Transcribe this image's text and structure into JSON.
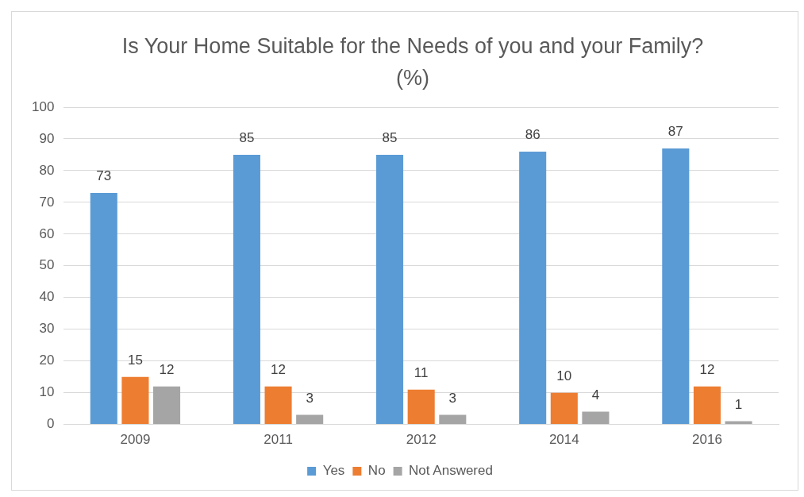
{
  "chart_data": {
    "type": "bar",
    "title": "Is Your Home Suitable for the Needs of you and your Family? (%)",
    "categories": [
      "2009",
      "2011",
      "2012",
      "2014",
      "2016"
    ],
    "series": [
      {
        "name": "Yes",
        "color": "#5b9bd5",
        "values": [
          73,
          85,
          85,
          86,
          87
        ]
      },
      {
        "name": "No",
        "color": "#ed7d31",
        "values": [
          15,
          12,
          11,
          10,
          12
        ]
      },
      {
        "name": "Not Answered",
        "color": "#a5a5a5",
        "values": [
          12,
          3,
          3,
          4,
          1
        ]
      }
    ],
    "ylim": [
      0,
      100
    ],
    "yticks": [
      0,
      10,
      20,
      30,
      40,
      50,
      60,
      70,
      80,
      90,
      100
    ],
    "grid": "y",
    "legend": "bottom",
    "data_labels": true
  }
}
